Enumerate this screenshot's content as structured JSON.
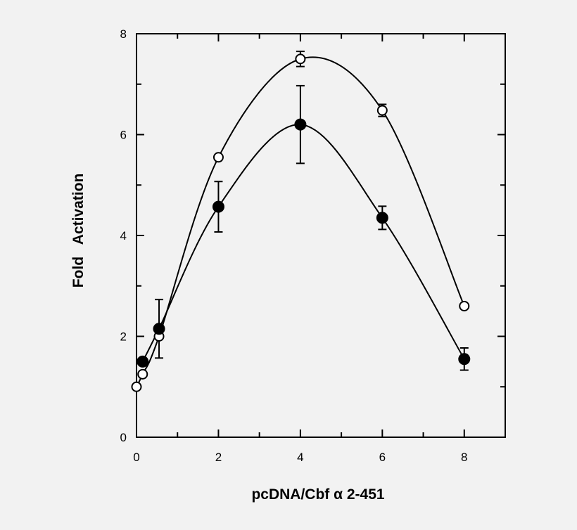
{
  "chart_data": {
    "type": "line",
    "title": "",
    "xlabel": "pcDNA/Cbf α 2-451",
    "ylabel": "Fold   Activation",
    "xlim": [
      0,
      9
    ],
    "ylim": [
      0,
      8
    ],
    "x_ticks": [
      0,
      2,
      4,
      6,
      8
    ],
    "y_ticks": [
      0,
      2,
      4,
      6,
      8
    ],
    "x_tick_labels": [
      "0",
      "2",
      "4",
      "6",
      "8"
    ],
    "y_tick_labels": [
      "0",
      "2",
      "4",
      "6",
      "8"
    ],
    "grid": false,
    "legend": "none",
    "series": [
      {
        "marker": "open-circle",
        "points": [
          {
            "x": 0,
            "y": 1.0
          },
          {
            "x": 0.15,
            "y": 1.25
          },
          {
            "x": 0.55,
            "y": 2.0
          },
          {
            "x": 2,
            "y": 5.55
          },
          {
            "x": 4,
            "y": 7.5,
            "err": 0.15
          },
          {
            "x": 6,
            "y": 6.48,
            "err": 0.12
          },
          {
            "x": 8,
            "y": 2.6
          }
        ]
      },
      {
        "marker": "filled-circle",
        "points": [
          {
            "x": 0.15,
            "y": 1.5
          },
          {
            "x": 0.55,
            "y": 2.15,
            "err": 0.58
          },
          {
            "x": 2,
            "y": 4.57,
            "err": 0.5
          },
          {
            "x": 4,
            "y": 6.2,
            "err": 0.77
          },
          {
            "x": 6,
            "y": 4.35,
            "err": 0.23
          },
          {
            "x": 8,
            "y": 1.55,
            "err": 0.22
          }
        ]
      }
    ]
  }
}
